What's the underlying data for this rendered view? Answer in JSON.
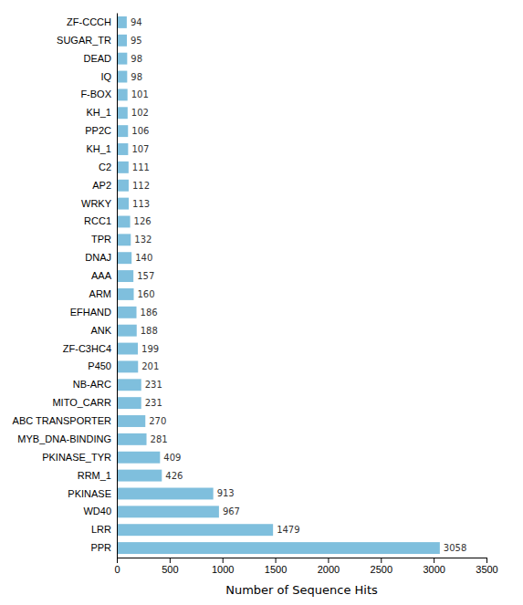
{
  "chart_data": {
    "type": "bar",
    "orientation": "horizontal",
    "categories": [
      "ZF-CCCH",
      "SUGAR_TR",
      "DEAD",
      "IQ",
      "F-BOX",
      "KH_1",
      "PP2C",
      "KH_1",
      "C2",
      "AP2",
      "WRKY",
      "RCC1",
      "TPR",
      "DNAJ",
      "AAA",
      "ARM",
      "EFHAND",
      "ANK",
      "ZF-C3HC4",
      "P450",
      "NB-ARC",
      "MITO_CARR",
      "ABC TRANSPORTER",
      "MYB_DNA-BINDING",
      "PKINASE_TYR",
      "RRM_1",
      "PKINASE",
      "WD40",
      "LRR",
      "PPR"
    ],
    "values": [
      94,
      95,
      98,
      98,
      101,
      102,
      106,
      107,
      111,
      112,
      113,
      126,
      132,
      140,
      157,
      160,
      186,
      188,
      199,
      201,
      231,
      231,
      270,
      281,
      409,
      426,
      913,
      967,
      1479,
      3058
    ],
    "color": "#7fbfdd",
    "xlabel": "Number of Sequence Hits",
    "xlim": [
      0,
      3500
    ],
    "xticks": [
      0,
      500,
      1000,
      1500,
      2000,
      2500,
      3000,
      3500
    ],
    "data_labels": true,
    "grid": false
  }
}
